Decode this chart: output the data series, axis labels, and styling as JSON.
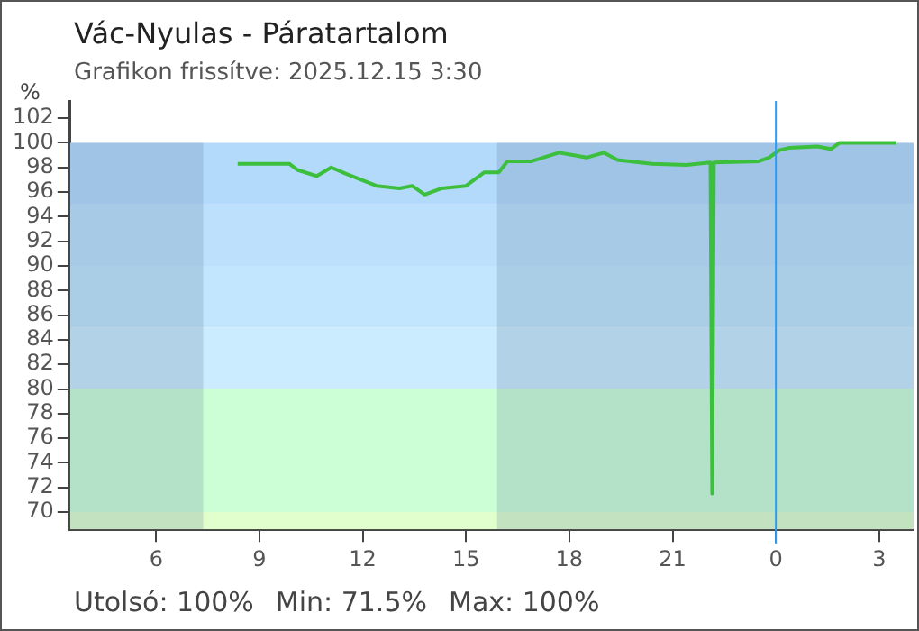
{
  "chart_data": {
    "type": "line",
    "title": "Vác-Nyulas - Páratartalom",
    "subtitle": "Grafikon frissítve: 2025.12.15 3:30",
    "ylabel": "%",
    "annotations": [
      "Utolsó: 100%",
      "Min: 71.5%",
      "Max: 100%"
    ],
    "x": [
      "2025-12-14T08:22",
      "2025-12-14T09:52",
      "2025-12-14T10:06",
      "2025-12-14T10:40",
      "2025-12-14T11:05",
      "2025-12-14T11:30",
      "2025-12-14T11:52",
      "2025-12-14T12:24",
      "2025-12-14T13:04",
      "2025-12-14T13:26",
      "2025-12-14T13:48",
      "2025-12-14T14:18",
      "2025-12-14T15:00",
      "2025-12-14T15:32",
      "2025-12-14T15:57",
      "2025-12-14T16:12",
      "2025-12-14T16:54",
      "2025-12-14T17:42",
      "2025-12-14T18:06",
      "2025-12-14T18:30",
      "2025-12-14T19:00",
      "2025-12-14T19:24",
      "2025-12-14T20:24",
      "2025-12-14T21:24",
      "2025-12-14T22:06",
      "2025-12-14T22:09",
      "2025-12-14T22:12",
      "2025-12-14T23:30",
      "2025-12-14T23:48",
      "2025-12-15T00:06",
      "2025-12-15T00:24",
      "2025-12-15T01:12",
      "2025-12-15T01:36",
      "2025-12-15T01:51",
      "2025-12-15T03:30"
    ],
    "values": [
      98.3,
      98.3,
      97.8,
      97.3,
      98.0,
      97.5,
      97.1,
      96.5,
      96.3,
      96.5,
      95.8,
      96.3,
      96.5,
      97.6,
      97.6,
      98.5,
      98.5,
      99.2,
      99.0,
      98.8,
      99.2,
      98.6,
      98.3,
      98.2,
      98.4,
      71.5,
      98.4,
      98.5,
      98.8,
      99.4,
      99.6,
      99.7,
      99.5,
      100,
      100
    ],
    "color": "#3cbf3c",
    "xlim": [
      "2025-12-14T03:30",
      "2025-12-15T04:00"
    ],
    "ylim": [
      68.6,
      103.4
    ],
    "xticks": [
      {
        "value": "2025-12-14T06:00",
        "label": "6"
      },
      {
        "value": "2025-12-14T09:00",
        "label": "9"
      },
      {
        "value": "2025-12-14T12:00",
        "label": "12"
      },
      {
        "value": "2025-12-14T15:00",
        "label": "15"
      },
      {
        "value": "2025-12-14T18:00",
        "label": "18"
      },
      {
        "value": "2025-12-14T21:00",
        "label": "21"
      },
      {
        "value": "2025-12-15T00:00",
        "label": "0"
      },
      {
        "value": "2025-12-15T03:00",
        "label": "3"
      }
    ],
    "yticks": [
      70,
      72,
      74,
      76,
      78,
      80,
      82,
      84,
      86,
      88,
      90,
      92,
      94,
      96,
      98,
      100,
      102
    ],
    "bands": [
      {
        "axis": "y",
        "from": 95,
        "to": 100,
        "color": "#b3d9fb"
      },
      {
        "axis": "y",
        "from": 90,
        "to": 95,
        "color": "#bde0fd"
      },
      {
        "axis": "y",
        "from": 85,
        "to": 90,
        "color": "#c2e6fe"
      },
      {
        "axis": "y",
        "from": 80,
        "to": 85,
        "color": "#cbebfe"
      },
      {
        "axis": "y",
        "from": 70,
        "to": 80,
        "color": "#ccffd6"
      },
      {
        "axis": "y",
        "from": 68.6,
        "to": 70,
        "color": "#e0ffcc"
      },
      {
        "axis": "x",
        "from": "2025-12-14T03:30",
        "to": "2025-12-14T07:22",
        "color": "#5a7a98"
      },
      {
        "axis": "x",
        "from": "2025-12-14T15:54",
        "to": "2025-12-15T04:00",
        "color": "#5a7a98"
      }
    ],
    "ref_lines": [
      {
        "axis": "x",
        "value": "2025-12-15T00:00",
        "color": "#2a9df4"
      }
    ]
  }
}
